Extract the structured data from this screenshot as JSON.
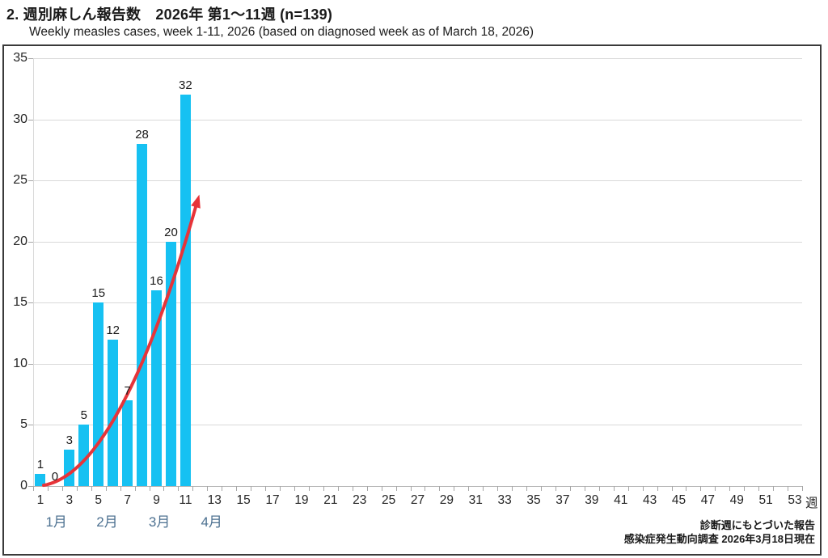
{
  "header": {
    "title": "2. 週別麻しん報告数　2026年 第1〜11週 (n=139)",
    "subtitle": "Weekly measles cases, week 1-11, 2026 (based on diagnosed week as of March 18, 2026)"
  },
  "chart_data": {
    "type": "bar",
    "title": "週別麻しん報告数 2026年 第1〜11週 (n=139)",
    "categories": [
      1,
      2,
      3,
      4,
      5,
      6,
      7,
      8,
      9,
      10,
      11
    ],
    "values": [
      1,
      0,
      3,
      5,
      15,
      12,
      7,
      28,
      16,
      20,
      32
    ],
    "n_total": 139,
    "xlabel": "週",
    "ylabel": "",
    "ylim": [
      0,
      35
    ],
    "yticks": [
      0,
      5,
      10,
      15,
      20,
      25,
      30,
      35
    ],
    "xticks": [
      1,
      3,
      5,
      7,
      9,
      11,
      13,
      15,
      17,
      19,
      21,
      23,
      25,
      27,
      29,
      31,
      33,
      35,
      37,
      39,
      41,
      43,
      45,
      47,
      49,
      51,
      53
    ],
    "x_axis_weeks": 53,
    "grid": true,
    "legend": "none",
    "months": [
      {
        "label": "1月",
        "week": 2.1
      },
      {
        "label": "2月",
        "week": 5.6
      },
      {
        "label": "3月",
        "week": 9.2
      },
      {
        "label": "4月",
        "week": 12.8
      }
    ],
    "colors": {
      "bar": "#16c1f2",
      "trend_arrow": "#e73439",
      "month_label": "#4d7191",
      "gridline": "#d9d9d9",
      "axis_tick": "#a6a6a6",
      "text": "#1a1a1a"
    },
    "annotations": [
      {
        "kind": "trend-arrow",
        "shape": "exponential-increase"
      }
    ]
  },
  "footer": {
    "line1": "診断週にもとづいた報告",
    "line2": "感染症発生動向調査 2026年3月18日現在"
  }
}
